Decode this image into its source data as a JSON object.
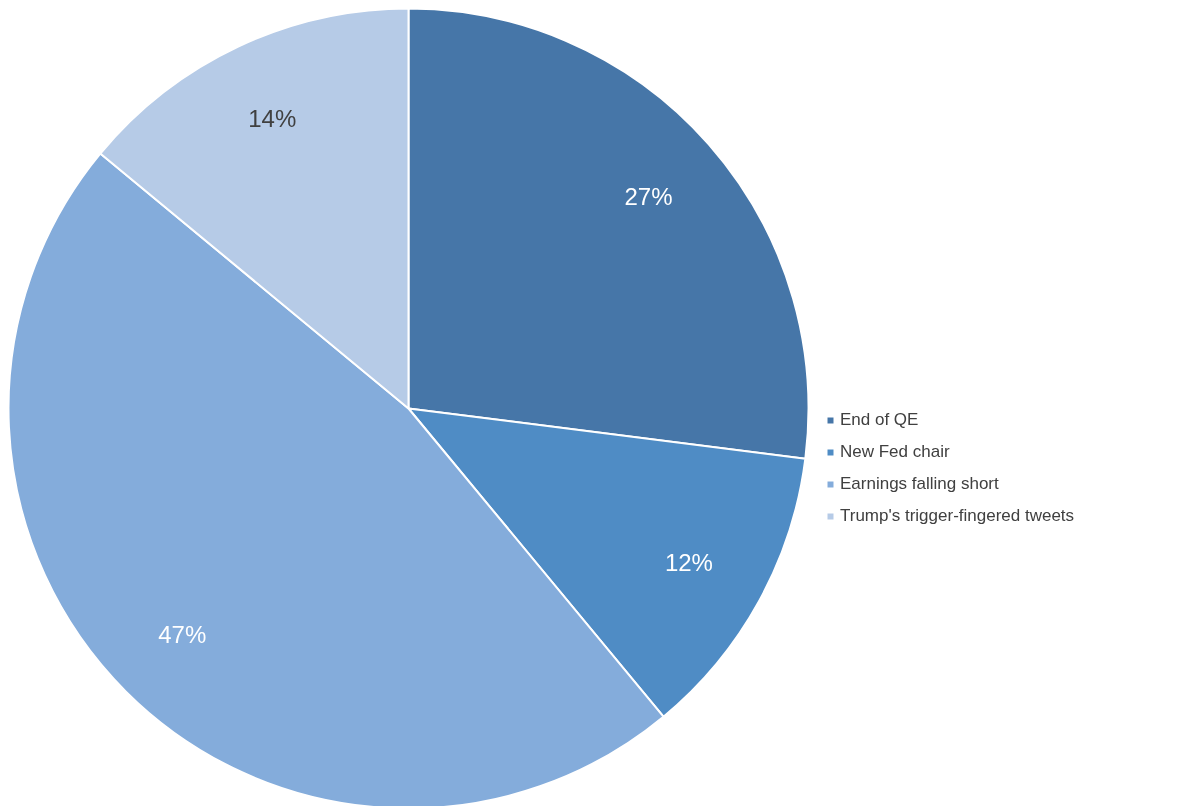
{
  "chart_data": {
    "type": "pie",
    "categories": [
      "End of QE",
      "New Fed chair",
      "Earnings falling short",
      "Trump's trigger-fingered tweets"
    ],
    "values": [
      27,
      12,
      47,
      14
    ],
    "colors": [
      "#4676a8",
      "#4f8cc5",
      "#84acdb",
      "#b6cbe7"
    ],
    "value_labels": [
      "27%",
      "12%",
      "47%",
      "14%"
    ],
    "legend": "right"
  }
}
